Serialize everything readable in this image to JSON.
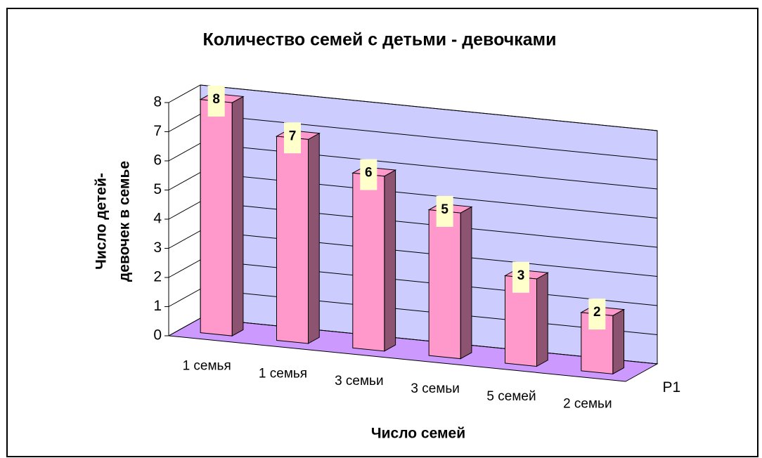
{
  "chart_data": {
    "type": "bar3d",
    "title": "Количество семей с детьми - девочками",
    "y_label": [
      "Число детей-",
      "девочек в семье"
    ],
    "x_label": "Число семей",
    "categories": [
      "1 семья",
      "1 семья",
      "3 семьи",
      "3 семьи",
      "5 семей",
      "2 семьи"
    ],
    "series": [
      {
        "name": "Р1",
        "color": "#ff99cc",
        "values": [
          8,
          7,
          6,
          5,
          3,
          2
        ]
      }
    ],
    "ylim": [
      0,
      8
    ],
    "yticks": [
      0,
      1,
      2,
      3,
      4,
      5,
      6,
      7,
      8
    ],
    "grid": true,
    "wall_color": "#ccccff",
    "floor_color": "#cc99ff",
    "label_box_color": "#ffffcc"
  }
}
